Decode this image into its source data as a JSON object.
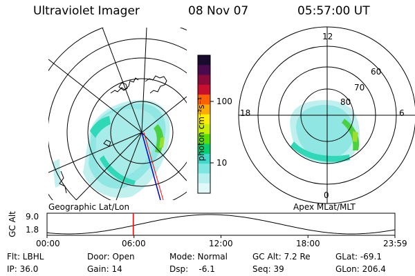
{
  "header": {
    "instrument": "Ultraviolet Imager",
    "date": "08 Nov 07",
    "time": "05:57:00 UT"
  },
  "left_map": {
    "label": "Geographic Lat/Lon"
  },
  "right_map": {
    "label": "Apex MLat/MLT",
    "mlt_labels": {
      "top": "12",
      "left": "18",
      "right": "6",
      "bottom": "0"
    },
    "lat_labels": [
      "60",
      "70",
      "80"
    ]
  },
  "colorbar": {
    "unit_label": "photon cm⁻²s⁻¹",
    "tick_100": "100",
    "tick_10": "10",
    "colors": [
      "#1a0a2e",
      "#4a0a4e",
      "#8a0a3a",
      "#c8102e",
      "#ff6000",
      "#ffaa00",
      "#ffee00",
      "#c8f000",
      "#5ae000",
      "#00d070",
      "#40d8c8",
      "#7ee6e0",
      "#b8f0f0",
      "#e0f8f8"
    ]
  },
  "altitude_plot": {
    "ylabel": "GC Alt",
    "ymax_label": "9.0",
    "ymin_label": "1.8",
    "x_ticks": [
      "00:00",
      "06:00",
      "12:00",
      "18:00",
      "23:59"
    ],
    "marker_time_hours": 5.95
  },
  "info": {
    "filter": "Flt: LBHL",
    "ip": "IP: 36.0",
    "door": "Door: Open",
    "gain": "Gain: 14",
    "mode": "Mode: Normal",
    "dsp": "Dsp:    -6.1",
    "gc_alt": "GC Alt: 7.2 Re",
    "seq": "Seq: 39",
    "glat": "GLat: -69.1",
    "glon": "GLon: 206.4"
  },
  "colors": {
    "aurora_low": "#8fe6e2",
    "aurora_mid": "#30d8b8",
    "aurora_high": "#4ad040",
    "marker": "#ff0000",
    "track": "#0000cc"
  }
}
